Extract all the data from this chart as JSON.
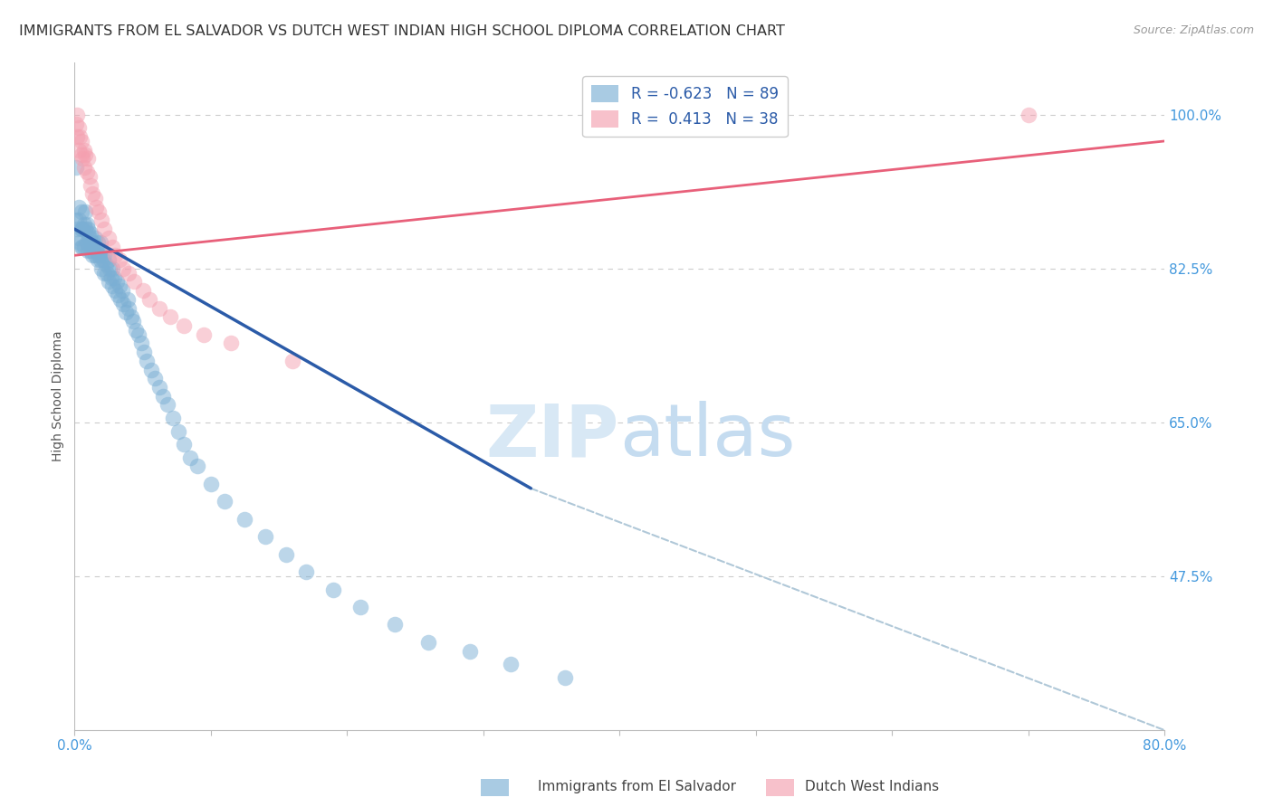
{
  "title": "IMMIGRANTS FROM EL SALVADOR VS DUTCH WEST INDIAN HIGH SCHOOL DIPLOMA CORRELATION CHART",
  "source": "Source: ZipAtlas.com",
  "ylabel": "High School Diploma",
  "legend_label1": "R = -0.623   N = 89",
  "legend_label2": "R =  0.413   N = 38",
  "bottom_legend_1": "Immigrants from El Salvador",
  "bottom_legend_2": "Dutch West Indians",
  "blue_color": "#7BAFD4",
  "pink_color": "#F4A0B0",
  "blue_line_color": "#2B5BA8",
  "pink_line_color": "#E8607A",
  "dashed_line_color": "#B0C8D8",
  "title_fontsize": 11.5,
  "axis_fontsize": 10,
  "tick_fontsize": 11,
  "background_color": "#FFFFFF",
  "xlim": [
    0.0,
    0.8
  ],
  "ylim": [
    0.3,
    1.06
  ],
  "blue_scatter_x": [
    0.001,
    0.001,
    0.002,
    0.003,
    0.003,
    0.003,
    0.004,
    0.005,
    0.005,
    0.005,
    0.006,
    0.006,
    0.007,
    0.007,
    0.008,
    0.008,
    0.009,
    0.009,
    0.01,
    0.01,
    0.01,
    0.011,
    0.012,
    0.012,
    0.013,
    0.013,
    0.014,
    0.015,
    0.015,
    0.016,
    0.017,
    0.017,
    0.018,
    0.019,
    0.019,
    0.02,
    0.02,
    0.021,
    0.022,
    0.022,
    0.023,
    0.024,
    0.025,
    0.025,
    0.026,
    0.027,
    0.028,
    0.028,
    0.029,
    0.03,
    0.031,
    0.032,
    0.033,
    0.034,
    0.035,
    0.036,
    0.038,
    0.039,
    0.04,
    0.042,
    0.043,
    0.045,
    0.047,
    0.049,
    0.051,
    0.053,
    0.056,
    0.059,
    0.062,
    0.065,
    0.068,
    0.072,
    0.076,
    0.08,
    0.085,
    0.09,
    0.1,
    0.11,
    0.125,
    0.14,
    0.155,
    0.17,
    0.19,
    0.21,
    0.235,
    0.26,
    0.29,
    0.32,
    0.36
  ],
  "blue_scatter_y": [
    0.94,
    0.88,
    0.87,
    0.88,
    0.86,
    0.895,
    0.855,
    0.87,
    0.85,
    0.89,
    0.87,
    0.85,
    0.875,
    0.85,
    0.87,
    0.89,
    0.855,
    0.875,
    0.865,
    0.845,
    0.87,
    0.86,
    0.845,
    0.865,
    0.84,
    0.855,
    0.85,
    0.84,
    0.86,
    0.845,
    0.835,
    0.855,
    0.84,
    0.835,
    0.855,
    0.825,
    0.845,
    0.835,
    0.82,
    0.84,
    0.83,
    0.82,
    0.81,
    0.835,
    0.825,
    0.815,
    0.805,
    0.825,
    0.815,
    0.8,
    0.81,
    0.795,
    0.805,
    0.79,
    0.8,
    0.785,
    0.775,
    0.79,
    0.78,
    0.77,
    0.765,
    0.755,
    0.75,
    0.74,
    0.73,
    0.72,
    0.71,
    0.7,
    0.69,
    0.68,
    0.67,
    0.655,
    0.64,
    0.625,
    0.61,
    0.6,
    0.58,
    0.56,
    0.54,
    0.52,
    0.5,
    0.48,
    0.46,
    0.44,
    0.42,
    0.4,
    0.39,
    0.375,
    0.36
  ],
  "pink_scatter_x": [
    0.001,
    0.002,
    0.002,
    0.003,
    0.003,
    0.004,
    0.005,
    0.005,
    0.006,
    0.007,
    0.007,
    0.008,
    0.009,
    0.01,
    0.011,
    0.012,
    0.013,
    0.015,
    0.016,
    0.018,
    0.02,
    0.022,
    0.025,
    0.028,
    0.03,
    0.033,
    0.036,
    0.04,
    0.044,
    0.05,
    0.055,
    0.062,
    0.07,
    0.08,
    0.095,
    0.115,
    0.16,
    0.7
  ],
  "pink_scatter_y": [
    0.99,
    1.0,
    0.975,
    0.985,
    0.96,
    0.975,
    0.955,
    0.97,
    0.95,
    0.96,
    0.94,
    0.955,
    0.935,
    0.95,
    0.93,
    0.92,
    0.91,
    0.905,
    0.895,
    0.89,
    0.88,
    0.87,
    0.86,
    0.85,
    0.84,
    0.835,
    0.825,
    0.82,
    0.81,
    0.8,
    0.79,
    0.78,
    0.77,
    0.76,
    0.75,
    0.74,
    0.72,
    1.0
  ],
  "blue_line_x": [
    0.0,
    0.335
  ],
  "blue_line_y": [
    0.87,
    0.575
  ],
  "pink_line_x": [
    0.0,
    0.8
  ],
  "pink_line_y": [
    0.84,
    0.97
  ],
  "dashed_line_x": [
    0.335,
    0.8
  ],
  "dashed_line_y": [
    0.575,
    0.3
  ]
}
